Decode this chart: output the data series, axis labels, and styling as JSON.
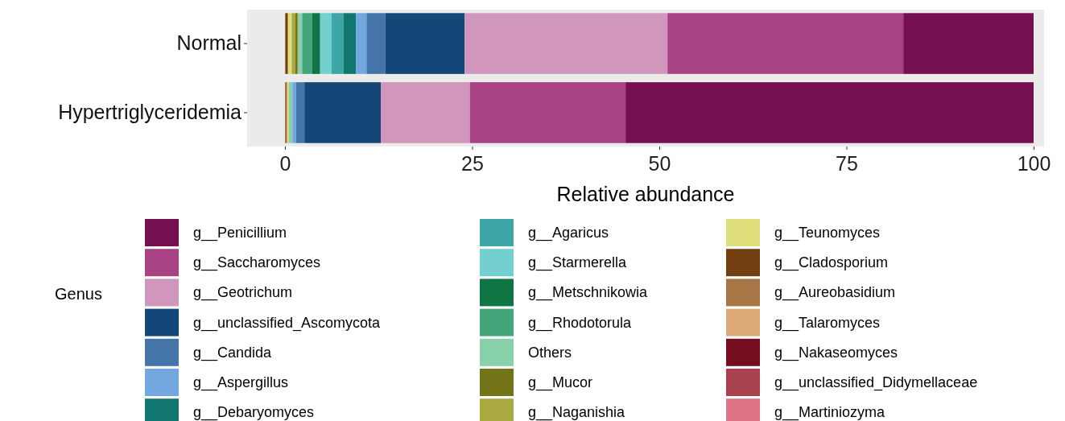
{
  "chart_data": {
    "type": "bar",
    "orientation": "horizontal",
    "stacked": true,
    "xlabel": "Relative abundance",
    "legend_title": "Genus",
    "legend": "bottom",
    "grid": false,
    "categories": [
      "Normal",
      "Hypertriglyceridemia"
    ],
    "xlim": [
      0,
      100
    ],
    "xticks": [
      0,
      25,
      50,
      75,
      100
    ],
    "series": [
      {
        "name": "g__Martiniozyma",
        "color": "#de7486",
        "values": [
          0,
          0
        ]
      },
      {
        "name": "g__unclassified_Didymellaceae",
        "color": "#a8424f",
        "values": [
          0,
          0
        ]
      },
      {
        "name": "g__Nakaseomyces",
        "color": "#750f1f",
        "values": [
          0,
          0
        ]
      },
      {
        "name": "g__Talaromyces",
        "color": "#deaa78",
        "values": [
          0,
          0
        ]
      },
      {
        "name": "g__Aureobasidium",
        "color": "#a87545",
        "values": [
          0.1,
          0.3
        ]
      },
      {
        "name": "g__Cladosporium",
        "color": "#733f10",
        "values": [
          0.3,
          0
        ]
      },
      {
        "name": "g__Teunomyces",
        "color": "#dede7a",
        "values": [
          0.5,
          0.2
        ]
      },
      {
        "name": "g__Naganishia",
        "color": "#a9a941",
        "values": [
          0.5,
          0
        ]
      },
      {
        "name": "g__Mucor",
        "color": "#737317",
        "values": [
          0.3,
          0
        ]
      },
      {
        "name": "Others",
        "color": "#88d1aa",
        "values": [
          0.6,
          0.5
        ]
      },
      {
        "name": "g__Rhodotorula",
        "color": "#43a67a",
        "values": [
          1.3,
          0
        ]
      },
      {
        "name": "g__Metschnikowia",
        "color": "#0f7545",
        "values": [
          1.1,
          0
        ]
      },
      {
        "name": "g__Starmerella",
        "color": "#74d0d0",
        "values": [
          1.5,
          0
        ]
      },
      {
        "name": "g__Agaricus",
        "color": "#3fa6a8",
        "values": [
          1.6,
          0
        ]
      },
      {
        "name": "g__Debaryomyces",
        "color": "#127670",
        "values": [
          1.7,
          0
        ]
      },
      {
        "name": "g__Aspergillus",
        "color": "#72a7df",
        "values": [
          1.4,
          0.5
        ]
      },
      {
        "name": "g__Candida",
        "color": "#4575a8",
        "values": [
          2.5,
          1.1
        ]
      },
      {
        "name": "g__unclassified_Ascomycota",
        "color": "#134778",
        "values": [
          10.6,
          10.2
        ]
      },
      {
        "name": "g__Geotrichum",
        "color": "#d096bb",
        "values": [
          27.1,
          11.9
        ]
      },
      {
        "name": "g__Saccharomyces",
        "color": "#a84285",
        "values": [
          31.5,
          20.8
        ]
      },
      {
        "name": "g__Penicillium",
        "color": "#750f50",
        "values": [
          17.4,
          54.5
        ]
      }
    ]
  }
}
